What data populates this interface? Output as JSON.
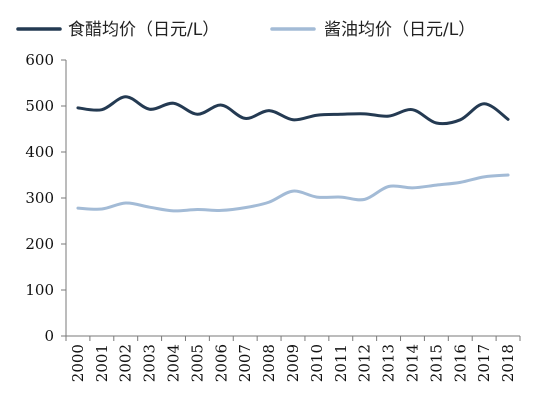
{
  "chart_data": {
    "type": "line",
    "categories": [
      "2000",
      "2001",
      "2002",
      "2003",
      "2004",
      "2005",
      "2006",
      "2007",
      "2008",
      "2009",
      "2010",
      "2011",
      "2012",
      "2013",
      "2014",
      "2015",
      "2016",
      "2017",
      "2018"
    ],
    "series": [
      {
        "name": "食醋均价（日元/L）",
        "color": "#243a52",
        "values": [
          496,
          492,
          520,
          493,
          506,
          482,
          502,
          473,
          490,
          470,
          480,
          482,
          483,
          478,
          492,
          463,
          470,
          505,
          471
        ]
      },
      {
        "name": "酱油均价（日元/L）",
        "color": "#a3bbd6",
        "values": [
          278,
          276,
          289,
          280,
          272,
          275,
          273,
          279,
          291,
          315,
          302,
          302,
          297,
          325,
          322,
          328,
          334,
          346,
          350
        ]
      }
    ],
    "ylim": [
      0,
      600
    ],
    "yticks": [
      0,
      100,
      200,
      300,
      400,
      500,
      600
    ],
    "grid": false,
    "legend_position": "top"
  }
}
